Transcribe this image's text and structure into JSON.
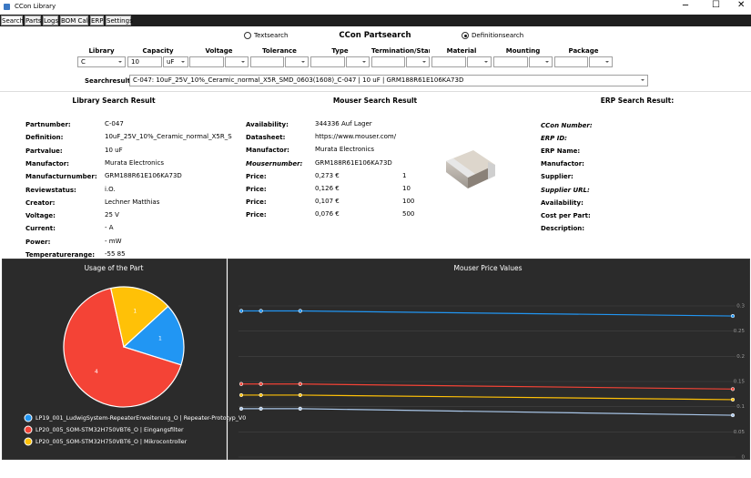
{
  "window": {
    "title": "CCon Library"
  },
  "tabs": [
    "Search",
    "Parts",
    "Logs",
    "BOM Calc",
    "ERP",
    "Settings"
  ],
  "search": {
    "options": [
      "Textsearch",
      "Definitionsearch"
    ],
    "selected_option": 1,
    "title": "CCon Partsearch",
    "filters": [
      {
        "label": "Library",
        "value": "C"
      },
      {
        "label": "Capacity",
        "value": "10",
        "unit": "uF"
      },
      {
        "label": "Voltage"
      },
      {
        "label": "Tolerance"
      },
      {
        "label": "Type"
      },
      {
        "label": "Termination/Standa"
      },
      {
        "label": "Material"
      },
      {
        "label": "Mounting"
      },
      {
        "label": "Package"
      }
    ],
    "results_label": "Searchresults",
    "result": "C-047: 10uF_25V_10%_Ceramic_normal_X5R_SMD_0603(1608)_C-047 | 10 uF | GRM188R61E106KA73D"
  },
  "library_result": {
    "title": "Library Search Result",
    "rows": [
      {
        "label": "Partnumber:",
        "value": "C-047"
      },
      {
        "label": "Definition:",
        "value": "10uF_25V_10%_Ceramic_normal_X5R_S"
      },
      {
        "label": "Partvalue:",
        "value": "10 uF"
      },
      {
        "label": "Manufactor:",
        "value": "Murata Electronics"
      },
      {
        "label": "Manufacturnumber:",
        "value": "GRM188R61E106KA73D"
      },
      {
        "label": "Reviewstatus:",
        "value": "i.O."
      },
      {
        "label": "Creator:",
        "value": "Lechner Matthias"
      },
      {
        "label": "Voltage:",
        "value": "25 V"
      },
      {
        "label": "Current:",
        "value": "- A"
      },
      {
        "label": "Power:",
        "value": "- mW"
      },
      {
        "label": "Temperaturerange:",
        "value": "-55 85"
      }
    ]
  },
  "mouser_result": {
    "title": "Mouser Search Result",
    "rows": [
      {
        "label": "Availability:",
        "value": "344336 Auf Lager"
      },
      {
        "label": "Datasheet:",
        "value": "https://www.mouser.com/"
      },
      {
        "label": "Manufactor:",
        "value": "Murata Electronics"
      },
      {
        "label": "Mousernumber:",
        "value": "GRM188R61E106KA73D",
        "italic": true
      },
      {
        "label": "Price:",
        "value": "0,273 €",
        "quantity": 1
      },
      {
        "label": "Price:",
        "value": "0,126 €",
        "quantity": 10
      },
      {
        "label": "Price:",
        "value": "0,107 €",
        "quantity": 100
      },
      {
        "label": "Price:",
        "value": "0,076 €",
        "quantity": 500
      }
    ]
  },
  "erp_result": {
    "title": "ERP Search Result:",
    "rows": [
      {
        "label": "CCon Number:",
        "italic": true
      },
      {
        "label": "ERP ID:",
        "italic": true
      },
      {
        "label": "ERP Name:"
      },
      {
        "label": "Manufactor:"
      },
      {
        "label": "Supplier:"
      },
      {
        "label": "Supplier URL:",
        "italic": true
      },
      {
        "label": "Availability:"
      },
      {
        "label": "Cost per Part:"
      },
      {
        "label": "Description:"
      }
    ]
  },
  "chart_data": [
    {
      "type": "pie",
      "title": "Usage of the Part",
      "categories": [
        "LP19_001_LudwigSystem-RepeaterErweiterung_O | Repeater-Prototyp_V0",
        "LP20_005_SOM-STM32H750VBT6_O | Eingangsfilter",
        "LP20_005_SOM-STM32H750VBT6_O | Mikrocontroller"
      ],
      "values": [
        1,
        4,
        1
      ],
      "colors": [
        "#2196f3",
        "#f44336",
        "#ffc107"
      ]
    },
    {
      "type": "line",
      "title": "Mouser Price Values",
      "x": [
        0,
        1,
        3,
        25
      ],
      "xlim": [
        0,
        25
      ],
      "ylim": [
        0,
        0.31
      ],
      "yticks": [
        0,
        0.05,
        0.1,
        0.15,
        0.2,
        0.25,
        0.3
      ],
      "y_axis_side": "right",
      "grid": true,
      "series": [
        {
          "color": "#2196f3",
          "values": [
            0.29,
            0.29,
            0.29,
            0.28
          ]
        },
        {
          "color": "#f44336",
          "values": [
            0.145,
            0.145,
            0.145,
            0.135
          ]
        },
        {
          "color": "#ffc107",
          "values": [
            0.123,
            0.123,
            0.123,
            0.114
          ]
        },
        {
          "color": "#a9c6e8",
          "values": [
            0.096,
            0.096,
            0.096,
            0.083
          ]
        }
      ]
    }
  ]
}
